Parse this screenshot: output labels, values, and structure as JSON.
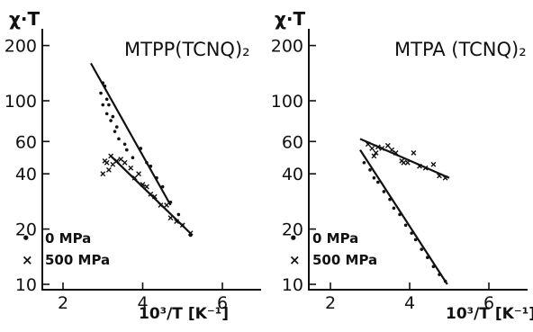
{
  "chart_data": [
    {
      "type": "scatter",
      "title": "MTPP(TCNQ)₂",
      "ylabel": "χ·T",
      "xlabel": "10³/T [K⁻¹]",
      "xlim": [
        1.5,
        6.6
      ],
      "ylim": [
        10,
        300
      ],
      "yscale": "log",
      "xticks": [
        2,
        4,
        6
      ],
      "xtick_labels": [
        "2",
        "4",
        "6"
      ],
      "yticks": [
        10,
        20,
        40,
        60,
        100,
        200
      ],
      "ytick_labels": [
        "10",
        "20",
        "40",
        "60",
        "100",
        "200"
      ],
      "legend": [
        {
          "symbol": "•",
          "label": "0 MPa"
        },
        {
          "symbol": "×",
          "label": "500 MPa"
        }
      ],
      "legend_position": "bottom-left",
      "series": [
        {
          "marker": "dot",
          "x": [
            2.95,
            3.0,
            3.05,
            3.1,
            3.15,
            3.0,
            3.1,
            3.25,
            3.2,
            3.35,
            3.3,
            3.4,
            3.55,
            3.6,
            3.75,
            3.95,
            4.1,
            4.2,
            4.35,
            4.5,
            4.7,
            4.9,
            5.0,
            5.2
          ],
          "y": [
            110,
            125,
            120,
            102,
            95,
            95,
            85,
            82,
            78,
            72,
            68,
            62,
            58,
            54,
            49,
            55,
            46,
            44,
            38,
            34,
            28,
            24,
            21,
            18.5
          ],
          "fit": {
            "x": [
              2.7,
              4.7
            ],
            "y": [
              160,
              27
            ]
          }
        },
        {
          "marker": "cross",
          "x": [
            3.0,
            3.05,
            3.1,
            3.15,
            3.2,
            3.25,
            3.35,
            3.45,
            3.55,
            3.7,
            3.8,
            3.9,
            4.0,
            4.1,
            4.2,
            4.3,
            4.45,
            4.6,
            4.7,
            4.85,
            5.0,
            5.2
          ],
          "y": [
            40,
            47,
            46,
            42,
            50,
            45,
            47,
            48,
            46,
            43,
            38,
            40,
            35,
            34,
            31,
            30,
            27,
            27,
            23,
            22,
            21,
            19
          ],
          "fit": {
            "x": [
              3.2,
              5.25
            ],
            "y": [
              50,
              18.5
            ]
          }
        }
      ]
    },
    {
      "type": "scatter",
      "title": "MTPA (TCNQ)₂",
      "ylabel": "χ·T",
      "xlabel": "10³/T [K⁻¹]",
      "xlim": [
        1.5,
        6.6
      ],
      "ylim": [
        10,
        300
      ],
      "yscale": "log",
      "xticks": [
        2,
        4,
        6
      ],
      "xtick_labels": [
        "2",
        "4",
        "6"
      ],
      "yticks": [
        10,
        20,
        40,
        60,
        100,
        200
      ],
      "ytick_labels": [
        "10",
        "20",
        "40",
        "60",
        "100",
        "200"
      ],
      "legend": [
        {
          "symbol": "•",
          "label": "0 MPa"
        },
        {
          "symbol": "×",
          "label": "500 MPa"
        }
      ],
      "legend_position": "bottom-left",
      "series": [
        {
          "marker": "dot",
          "x": [
            2.85,
            3.0,
            3.1,
            3.2,
            3.35,
            3.5,
            3.6,
            3.75,
            3.9,
            4.05,
            4.15,
            4.3,
            4.45,
            4.6,
            4.75,
            4.9
          ],
          "y": [
            46,
            42,
            38,
            36,
            32,
            29,
            26,
            24,
            21,
            19,
            17.5,
            15.5,
            14,
            12.5,
            11.3,
            10.4
          ],
          "fit": {
            "x": [
              2.75,
              4.95
            ],
            "y": [
              54,
              10
            ]
          }
        },
        {
          "marker": "cross",
          "x": [
            2.95,
            3.05,
            3.1,
            3.15,
            3.2,
            3.3,
            3.45,
            3.55,
            3.65,
            3.8,
            3.85,
            3.95,
            4.1,
            4.25,
            4.4,
            4.6,
            4.75,
            4.9
          ],
          "y": [
            58,
            55,
            50,
            52,
            56,
            55,
            57,
            54,
            52,
            47,
            46,
            46,
            52,
            44,
            43,
            45,
            39,
            38
          ],
          "fit": {
            "x": [
              2.75,
              5.0
            ],
            "y": [
              62,
              38
            ]
          }
        }
      ]
    }
  ]
}
